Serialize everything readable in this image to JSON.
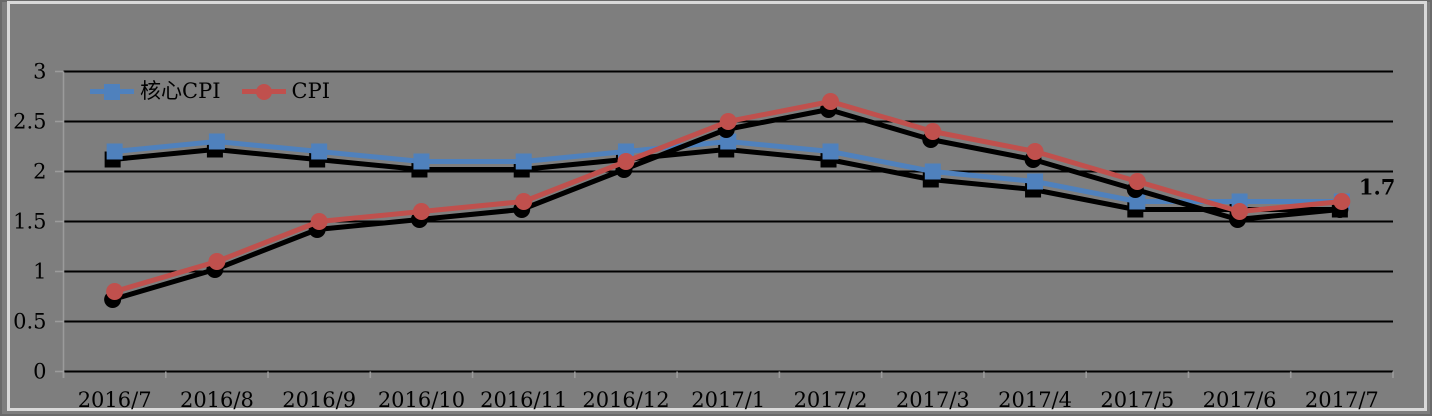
{
  "chart_data": {
    "type": "line",
    "title": "",
    "xlabel": "",
    "ylabel": "",
    "categories": [
      "2016/7",
      "2016/8",
      "2016/9",
      "2016/10",
      "2016/11",
      "2016/12",
      "2017/1",
      "2017/2",
      "2017/3",
      "2017/4",
      "2017/5",
      "2017/6",
      "2017/7"
    ],
    "series": [
      {
        "name": "核心CPI",
        "marker": "square",
        "color": "#4F81BD",
        "values": [
          2.2,
          2.3,
          2.2,
          2.1,
          2.1,
          2.2,
          2.3,
          2.2,
          2.0,
          1.9,
          1.7,
          1.7,
          1.7
        ]
      },
      {
        "name": "CPI",
        "marker": "circle",
        "color": "#C0504D",
        "values": [
          0.8,
          1.1,
          1.5,
          1.6,
          1.7,
          2.1,
          2.5,
          2.7,
          2.4,
          2.2,
          1.9,
          1.6,
          1.7
        ]
      }
    ],
    "ylim": [
      0,
      3
    ],
    "y_ticks": [
      {
        "value": 0,
        "label": "0"
      },
      {
        "value": 0.5,
        "label": "0.5"
      },
      {
        "value": 1,
        "label": "1"
      },
      {
        "value": 1.5,
        "label": "1.5"
      },
      {
        "value": 2,
        "label": "2"
      },
      {
        "value": 2.5,
        "label": "2.5"
      },
      {
        "value": 3,
        "label": "3"
      }
    ],
    "grid": "horizontal",
    "legend_position": "inside-top-left",
    "annotation": {
      "text": "1.7",
      "series_index": 1,
      "point_index": 12
    }
  },
  "colors": {
    "background": "#7E7E7E",
    "outer_edge": "#6A6A6A",
    "frame_border": "#D9D9D9",
    "gridline": "#000000",
    "axis": "#9B9B9B",
    "core_cpi": "#4F81BD",
    "cpi": "#C0504D",
    "text": "#000000",
    "shadow": "#000000"
  }
}
